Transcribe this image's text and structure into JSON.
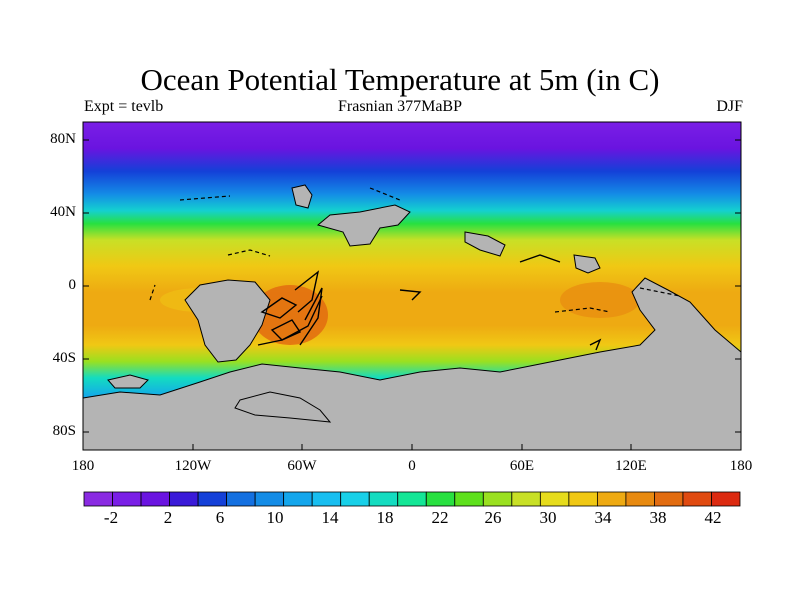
{
  "figure": {
    "title": "Ocean Potential Temperature at 5m (in C)",
    "left_string": "Expt = tevlb",
    "center_string": "Frasnian 377MaBP",
    "right_string": "DJF"
  },
  "map_data": {
    "type": "filled-contour-map",
    "projection": "cylindrical-equidistant",
    "lon_range": [
      -180,
      180
    ],
    "lat_range": [
      -90,
      90
    ],
    "lat_ticks": [
      "80N",
      "40N",
      "0",
      "40S",
      "80S"
    ],
    "lon_ticks": [
      "180",
      "120W",
      "60W",
      "0",
      "60E",
      "120E",
      "180"
    ],
    "land_color": "#b4b4b4",
    "coastline_color": "#000000"
  },
  "colorbar": {
    "labels": [
      "-2",
      "2",
      "6",
      "10",
      "14",
      "18",
      "22",
      "26",
      "30",
      "34",
      "38",
      "42"
    ],
    "colors": [
      "#8a2be2",
      "#7a1fe6",
      "#6a14e0",
      "#3a1ad8",
      "#1440d8",
      "#1470e0",
      "#148ce6",
      "#14a6ec",
      "#18bef0",
      "#18d0e8",
      "#14dcc0",
      "#14e696",
      "#28e040",
      "#5ee01c",
      "#9ae020",
      "#c8e026",
      "#e6dc1c",
      "#f0c814",
      "#eeaa12",
      "#e88a10",
      "#e26c10",
      "#e04a10",
      "#dc2a10"
    ]
  }
}
